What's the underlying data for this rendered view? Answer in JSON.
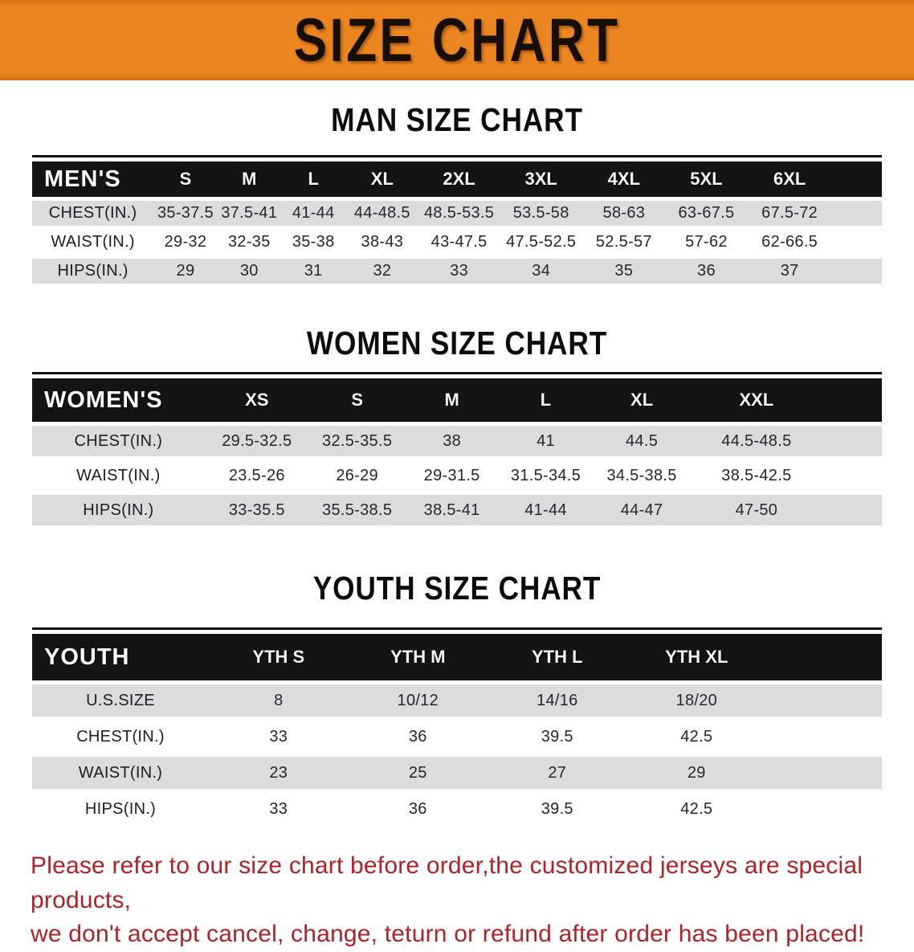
{
  "banner": {
    "title": "SIZE CHART"
  },
  "colors": {
    "banner_orange": "#EA8520",
    "banner_orange_dark": "#D67015",
    "header_bar": "#141414",
    "row_shade": "#DCDCDC",
    "footer_red": "#B02227",
    "title_black": "#0C0C0C",
    "cell_text": "#26262E"
  },
  "sections": {
    "men": {
      "title": "MAN SIZE CHART",
      "table": {
        "header": [
          "MEN'S",
          "S",
          "M",
          "L",
          "XL",
          "2XL",
          "3XL",
          "4XL",
          "5XL",
          "6XL"
        ],
        "rows": [
          [
            "CHEST(IN.)",
            "35-37.5",
            "37.5-41",
            "41-44",
            "44-48.5",
            "48.5-53.5",
            "53.5-58",
            "58-63",
            "63-67.5",
            "67.5-72"
          ],
          [
            "WAIST(IN.)",
            "29-32",
            "32-35",
            "35-38",
            "38-43",
            "43-47.5",
            "47.5-52.5",
            "52.5-57",
            "57-62",
            "62-66.5"
          ],
          [
            "HIPS(IN.)",
            "29",
            "30",
            "31",
            "32",
            "33",
            "34",
            "35",
            "36",
            "37"
          ]
        ]
      }
    },
    "women": {
      "title": "WOMEN SIZE CHART",
      "table": {
        "header": [
          "WOMEN'S",
          "XS",
          "S",
          "M",
          "L",
          "XL",
          "XXL"
        ],
        "rows": [
          [
            "CHEST(IN.)",
            "29.5-32.5",
            "32.5-35.5",
            "38",
            "41",
            "44.5",
            "44.5-48.5"
          ],
          [
            "WAIST(IN.)",
            "23.5-26",
            "26-29",
            "29-31.5",
            "31.5-34.5",
            "34.5-38.5",
            "38.5-42.5"
          ],
          [
            "HIPS(IN.)",
            "33-35.5",
            "35.5-38.5",
            "38.5-41",
            "41-44",
            "44-47",
            "47-50"
          ]
        ]
      }
    },
    "youth": {
      "title": "YOUTH SIZE CHART",
      "table": {
        "header": [
          "YOUTH",
          "YTH S",
          "YTH M",
          "YTH L",
          "YTH XL"
        ],
        "rows": [
          [
            "U.S.SIZE",
            "8",
            "10/12",
            "14/16",
            "18/20"
          ],
          [
            "CHEST(IN.)",
            "33",
            "36",
            "39.5",
            "42.5"
          ],
          [
            "WAIST(IN.)",
            "23",
            "25",
            "27",
            "29"
          ],
          [
            "HIPS(IN.)",
            "33",
            "36",
            "39.5",
            "42.5"
          ]
        ]
      }
    }
  },
  "footer": {
    "line1": "Please refer to our size chart before order,the customized jerseys are special products,",
    "line2": "we don't accept cancel, change, teturn or refund after order has been placed!"
  }
}
